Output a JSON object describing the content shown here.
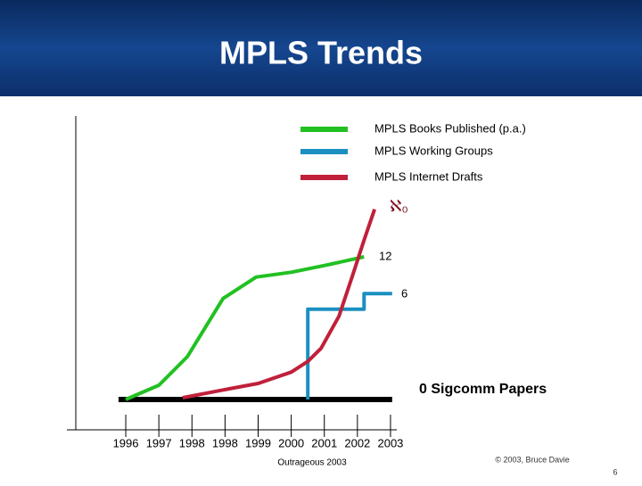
{
  "header": {
    "title": "MPLS Trends"
  },
  "chart_data": {
    "type": "line",
    "series": [
      {
        "name": "MPLS Books Published (p.a.)",
        "color": "#22c022",
        "x": [
          0,
          1.0,
          1.86,
          2.94,
          3.94,
          5.0,
          6.06,
          7.2
        ],
        "values": [
          0,
          1.2,
          3.6,
          8.5,
          10.3,
          10.7,
          11.3,
          12
        ]
      },
      {
        "name": "MPLS Working Groups",
        "color": "#1a8fc0",
        "x": [
          5.5,
          5.5,
          7.2,
          7.2,
          8.05
        ],
        "values": [
          0,
          7.6,
          7.6,
          8.9,
          8.9
        ]
      },
      {
        "name": "MPLS Internet Drafts",
        "color": "#c0203a",
        "x": [
          1.72,
          2.94,
          4.0,
          5.0,
          5.5,
          5.9,
          6.44,
          6.85,
          7.2,
          7.52
        ],
        "values": [
          0.15,
          0.8,
          1.35,
          2.3,
          3.2,
          4.3,
          7.0,
          10.4,
          13.4,
          16
        ]
      }
    ],
    "baseline": {
      "color": "#000000",
      "x": [
        -0.22,
        8.05
      ],
      "values": [
        0,
        0
      ]
    },
    "annotations": [
      "ℵ₀",
      "12",
      "6",
      "0 Sigcomm Papers"
    ],
    "xlim": [
      -1.51,
      8.19
    ],
    "ylim": [
      -2.55,
      23.85
    ],
    "xticks": [
      {
        "value": 0,
        "label": "1996"
      },
      {
        "value": 1,
        "label": "1997"
      },
      {
        "value": 2,
        "label": "1998"
      },
      {
        "value": 3,
        "label": "1998"
      },
      {
        "value": 4,
        "label": "1999"
      },
      {
        "value": 5,
        "label": "2000"
      },
      {
        "value": 6,
        "label": "2001"
      },
      {
        "value": 7,
        "label": "2002"
      },
      {
        "value": 8,
        "label": "2003"
      }
    ]
  },
  "footer": {
    "left": "Outrageous 2003",
    "right": "© 2003, Bruce Davie",
    "page": "6"
  }
}
